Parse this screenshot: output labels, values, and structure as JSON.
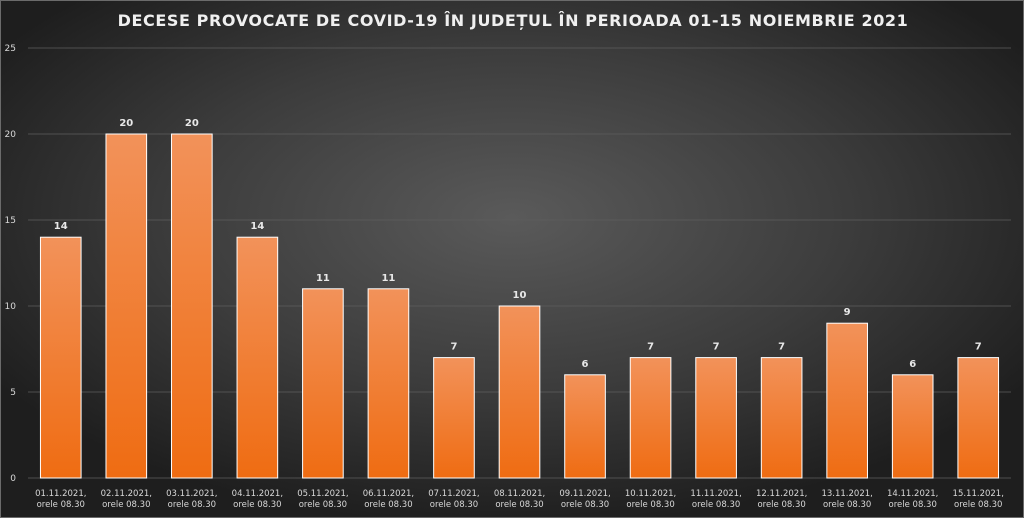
{
  "chart_data": {
    "type": "bar",
    "title": "DECESE PROVOCATE DE COVID-19 ÎN JUDEȚUL ÎN PERIOADA 01-15 NOIEMBRIE 2021",
    "categories": [
      [
        "01.11.2021,",
        "orele 08.30"
      ],
      [
        "02.11.2021,",
        "orele 08.30"
      ],
      [
        "03.11.2021,",
        "orele 08.30"
      ],
      [
        "04.11.2021,",
        "orele 08.30"
      ],
      [
        "05.11.2021,",
        "orele 08.30"
      ],
      [
        "06.11.2021,",
        "orele 08.30"
      ],
      [
        "07.11.2021,",
        "orele 08.30"
      ],
      [
        "08.11.2021,",
        "orele 08.30"
      ],
      [
        "09.11.2021,",
        "orele 08.30"
      ],
      [
        "10.11.2021,",
        "orele 08.30"
      ],
      [
        "11.11.2021,",
        "orele 08.30"
      ],
      [
        "12.11.2021,",
        "orele 08.30"
      ],
      [
        "13.11.2021,",
        "orele 08.30"
      ],
      [
        "14.11.2021,",
        "orele 08.30"
      ],
      [
        "15.11.2021,",
        "orele 08.30"
      ]
    ],
    "values": [
      14,
      20,
      20,
      14,
      11,
      11,
      7,
      10,
      6,
      7,
      7,
      7,
      9,
      6,
      7
    ],
    "ylim": [
      0,
      25
    ],
    "yticks": [
      0,
      5,
      10,
      15,
      20,
      25
    ],
    "xlabel": "",
    "ylabel": "",
    "grid": true,
    "data_labels": true,
    "colors": {
      "bar_top": "#f2925a",
      "bar_bottom": "#ef6c12",
      "bar_edge": "#ffffff",
      "grid": "#5e5e5e",
      "axis_text": "#d8d8d8",
      "label_text": "#e8e8e8"
    }
  }
}
